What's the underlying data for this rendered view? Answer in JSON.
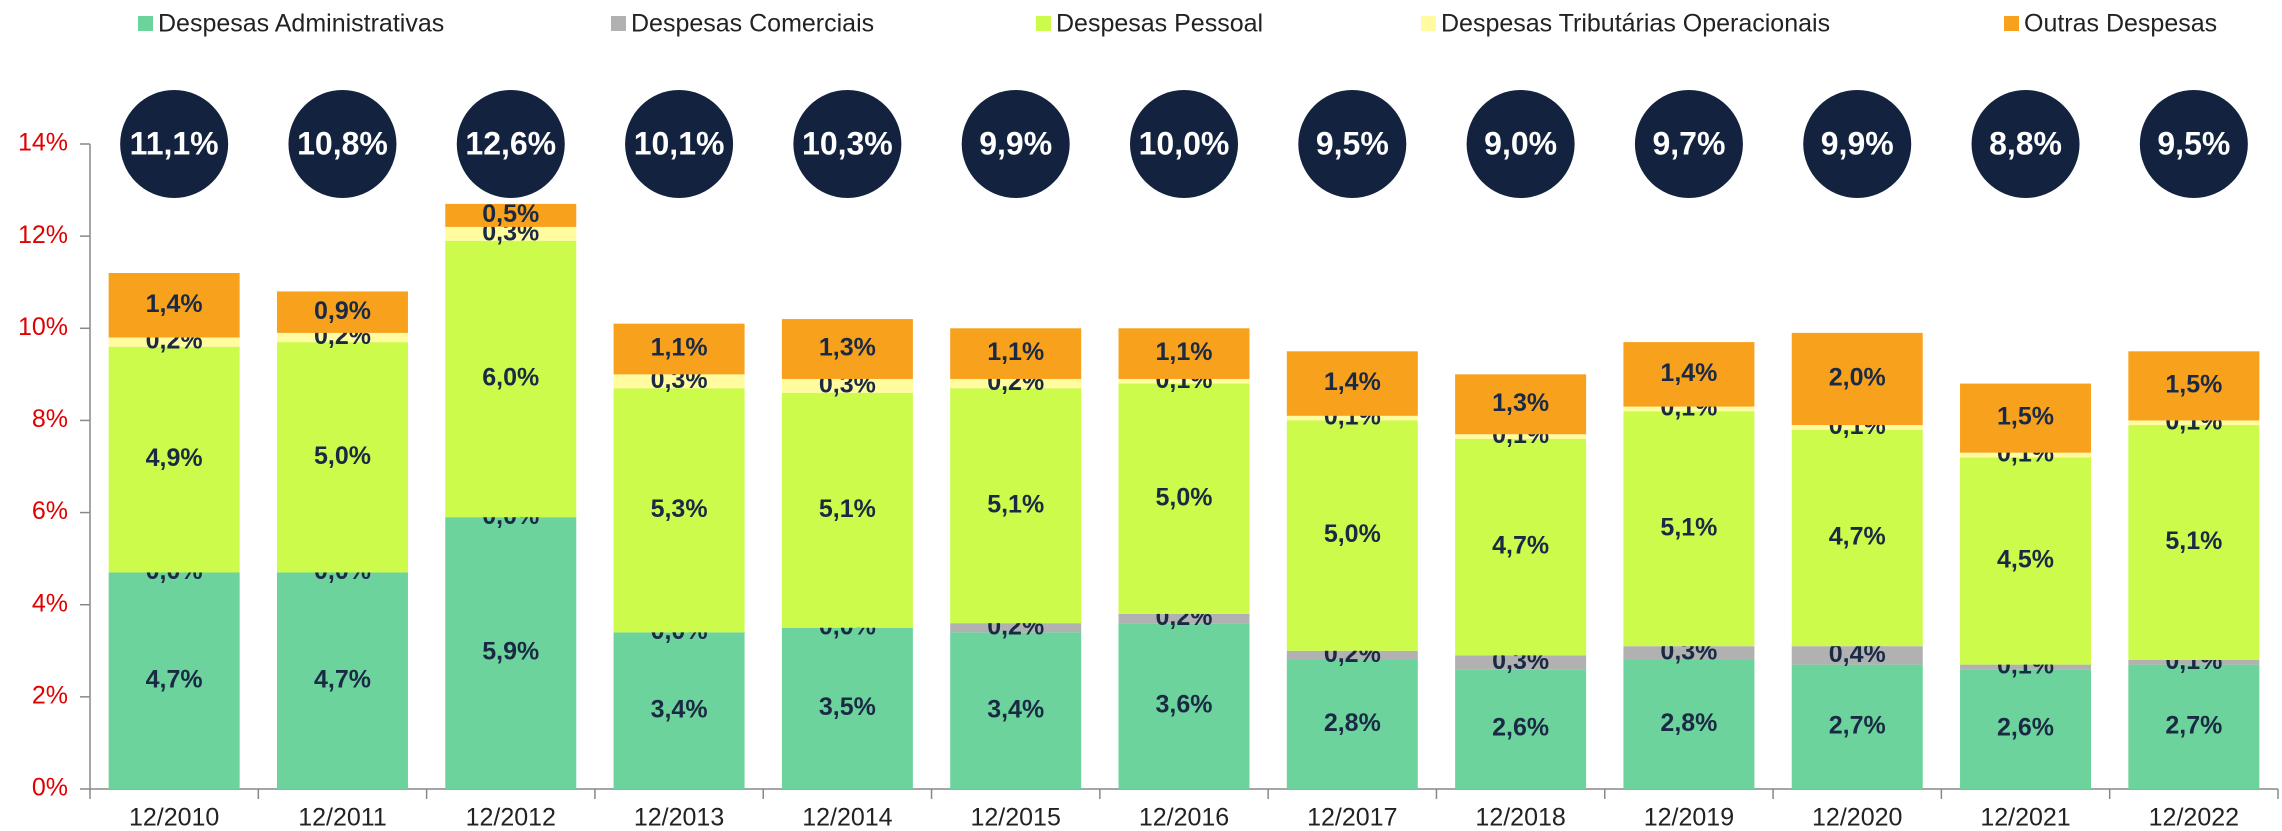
{
  "chart_data": {
    "type": "stacked_bar",
    "categories": [
      "12/2010",
      "12/2011",
      "12/2012",
      "12/2013",
      "12/2014",
      "12/2015",
      "12/2016",
      "12/2017",
      "12/2018",
      "12/2019",
      "12/2020",
      "12/2021",
      "12/2022"
    ],
    "series": [
      {
        "name": "Despesas Administrativas",
        "color": "#6dd39c",
        "values": [
          4.7,
          4.7,
          5.9,
          3.4,
          3.5,
          3.4,
          3.6,
          2.8,
          2.6,
          2.8,
          2.7,
          2.6,
          2.7
        ],
        "value_labels": [
          "4,7%",
          "4,7%",
          "5,9%",
          "3,4%",
          "3,5%",
          "3,4%",
          "3,6%",
          "2,8%",
          "2,6%",
          "2,8%",
          "2,7%",
          "2,6%",
          "2,7%"
        ]
      },
      {
        "name": "Despesas Comerciais",
        "color": "#b1b1b1",
        "values": [
          0.0,
          0.0,
          0.0,
          0.0,
          0.0,
          0.2,
          0.2,
          0.2,
          0.3,
          0.3,
          0.4,
          0.1,
          0.1
        ],
        "value_labels": [
          "0,0%",
          "0,0%",
          "0,0%",
          "0,0%",
          "0,0%",
          "0,2%",
          "0,2%",
          "0,2%",
          "0,3%",
          "0,3%",
          "0,4%",
          "0,1%",
          "0,1%"
        ]
      },
      {
        "name": "Despesas Pessoal",
        "color": "#ccfb4c",
        "values": [
          4.9,
          5.0,
          6.0,
          5.3,
          5.1,
          5.1,
          5.0,
          5.0,
          4.7,
          5.1,
          4.7,
          4.5,
          5.1
        ],
        "value_labels": [
          "4,9%",
          "5,0%",
          "6,0%",
          "5,3%",
          "5,1%",
          "5,1%",
          "5,0%",
          "5,0%",
          "4,7%",
          "5,1%",
          "4,7%",
          "4,5%",
          "5,1%"
        ]
      },
      {
        "name": "Despesas Tributárias Operacionais",
        "color": "#fffb9e",
        "values": [
          0.2,
          0.2,
          0.3,
          0.3,
          0.3,
          0.2,
          0.1,
          0.1,
          0.1,
          0.1,
          0.1,
          0.1,
          0.1
        ],
        "value_labels": [
          "0,2%",
          "0,2%",
          "0,3%",
          "0,3%",
          "0,3%",
          "0,2%",
          "0,1%",
          "0,1%",
          "0,1%",
          "0,1%",
          "0,1%",
          "0,1%",
          "0,1%"
        ]
      },
      {
        "name": "Outras Despesas",
        "color": "#f8a11d",
        "values": [
          1.4,
          0.9,
          0.5,
          1.1,
          1.3,
          1.1,
          1.1,
          1.4,
          1.3,
          1.4,
          2.0,
          1.5,
          1.5
        ],
        "value_labels": [
          "1,4%",
          "0,9%",
          "0,5%",
          "1,1%",
          "1,3%",
          "1,1%",
          "1,1%",
          "1,4%",
          "1,3%",
          "1,4%",
          "2,0%",
          "1,5%",
          "1,5%"
        ]
      }
    ],
    "totals": {
      "color": "#13233f",
      "values": [
        11.1,
        10.8,
        12.6,
        10.1,
        10.3,
        9.9,
        10.0,
        9.5,
        9.0,
        9.7,
        9.9,
        8.8,
        9.5
      ],
      "value_labels": [
        "11,1%",
        "10,8%",
        "12,6%",
        "10,1%",
        "10,3%",
        "9,9%",
        "10,0%",
        "9,5%",
        "9,0%",
        "9,7%",
        "9,9%",
        "8,8%",
        "9,5%"
      ]
    },
    "ylim": [
      0,
      14
    ],
    "yticks": [
      {
        "value": 0,
        "label": "0%"
      },
      {
        "value": 2,
        "label": "2%"
      },
      {
        "value": 4,
        "label": "4%"
      },
      {
        "value": 6,
        "label": "6%"
      },
      {
        "value": 8,
        "label": "8%"
      },
      {
        "value": 10,
        "label": "10%"
      },
      {
        "value": 12,
        "label": "12%"
      },
      {
        "value": 14,
        "label": "14%"
      }
    ],
    "legend": "top"
  }
}
